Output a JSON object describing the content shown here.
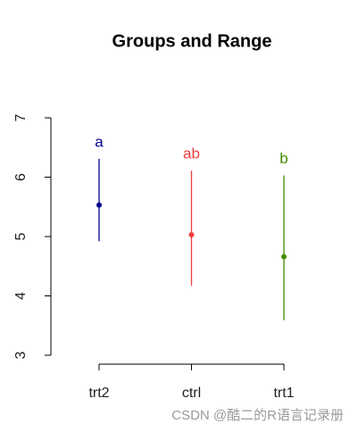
{
  "chart_data": {
    "type": "range",
    "title": "Groups and Range",
    "categories": [
      "trt2",
      "ctrl",
      "trt1"
    ],
    "values": [
      5.53,
      5.03,
      4.66
    ],
    "lower": [
      4.92,
      4.17,
      3.59
    ],
    "upper": [
      6.31,
      6.11,
      6.03
    ],
    "letters": [
      "a",
      "ab",
      "b"
    ],
    "colors": [
      "#00008b",
      "#ee4040",
      "#458b00"
    ],
    "ylim": [
      3,
      7
    ],
    "yticks": [
      3,
      4,
      5,
      6,
      7
    ]
  },
  "watermark": "CSDN @酷二的R语言记录册"
}
